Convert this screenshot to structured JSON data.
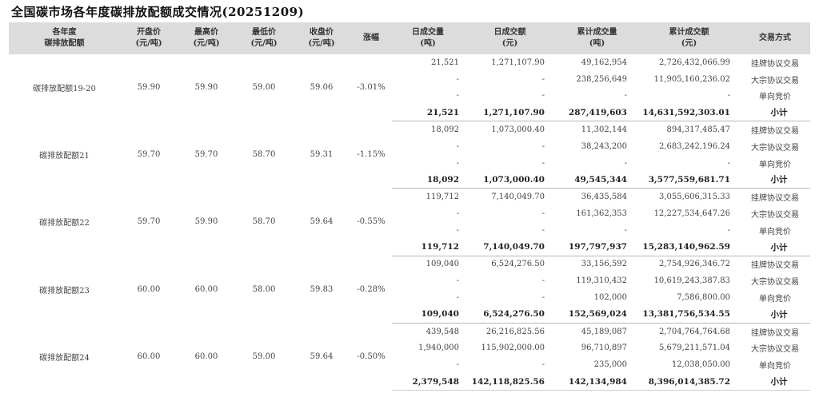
{
  "title": "全国碳市场各年度碳排放配额成交情况(20251209)",
  "headers": [
    [
      "各年度",
      "碳排放配额"
    ],
    [
      "开盘价",
      "(元/吨)"
    ],
    [
      "最高价",
      "(元/吨)"
    ],
    [
      "最低价",
      "(元/吨)"
    ],
    [
      "收盘价",
      "(元/吨)"
    ],
    [
      "涨幅"
    ],
    [
      "日成交量",
      "(吨)"
    ],
    [
      "日成交额",
      "(元)"
    ],
    [
      "累计成交量",
      "(吨)"
    ],
    [
      "累计成交额",
      "(元)"
    ],
    [
      "交易方式"
    ]
  ],
  "groups": [
    {
      "name": "碳排放配额19-20",
      "open": "59.90",
      "high": "59.90",
      "low": "59.00",
      "close": "59.06",
      "change": "-3.01%",
      "rows": [
        {
          "dvol": "21,521",
          "damt": "1,271,107.90",
          "cvol": "49,162,954",
          "camt": "2,726,432,066.99",
          "mode": "挂牌协议交易"
        },
        {
          "dvol": "-",
          "damt": "-",
          "cvol": "238,256,649",
          "camt": "11,905,160,236.02",
          "mode": "大宗协议交易"
        },
        {
          "dvol": "-",
          "damt": "-",
          "cvol": "-",
          "camt": "-",
          "mode": "单向竞价"
        },
        {
          "dvol": "21,521",
          "damt": "1,271,107.90",
          "cvol": "287,419,603",
          "camt": "14,631,592,303.01",
          "mode": "小计"
        }
      ]
    },
    {
      "name": "碳排放配额21",
      "open": "59.70",
      "high": "59.70",
      "low": "58.70",
      "close": "59.31",
      "change": "-1.15%",
      "rows": [
        {
          "dvol": "18,092",
          "damt": "1,073,000.40",
          "cvol": "11,302,144",
          "camt": "894,317,485.47",
          "mode": "挂牌协议交易"
        },
        {
          "dvol": "-",
          "damt": "-",
          "cvol": "38,243,200",
          "camt": "2,683,242,196.24",
          "mode": "大宗协议交易"
        },
        {
          "dvol": "-",
          "damt": "-",
          "cvol": "-",
          "camt": "-",
          "mode": "单向竞价"
        },
        {
          "dvol": "18,092",
          "damt": "1,073,000.40",
          "cvol": "49,545,344",
          "camt": "3,577,559,681.71",
          "mode": "小计"
        }
      ]
    },
    {
      "name": "碳排放配额22",
      "open": "59.70",
      "high": "59.90",
      "low": "58.70",
      "close": "59.64",
      "change": "-0.55%",
      "rows": [
        {
          "dvol": "119,712",
          "damt": "7,140,049.70",
          "cvol": "36,435,584",
          "camt": "3,055,606,315.33",
          "mode": "挂牌协议交易"
        },
        {
          "dvol": "-",
          "damt": "-",
          "cvol": "161,362,353",
          "camt": "12,227,534,647.26",
          "mode": "大宗协议交易"
        },
        {
          "dvol": "-",
          "damt": "-",
          "cvol": "-",
          "camt": "-",
          "mode": "单向竞价"
        },
        {
          "dvol": "119,712",
          "damt": "7,140,049.70",
          "cvol": "197,797,937",
          "camt": "15,283,140,962.59",
          "mode": "小计"
        }
      ]
    },
    {
      "name": "碳排放配额23",
      "open": "60.00",
      "high": "60.00",
      "low": "58.00",
      "close": "59.83",
      "change": "-0.28%",
      "rows": [
        {
          "dvol": "109,040",
          "damt": "6,524,276.50",
          "cvol": "33,156,592",
          "camt": "2,754,926,346.72",
          "mode": "挂牌协议交易"
        },
        {
          "dvol": "-",
          "damt": "-",
          "cvol": "119,310,432",
          "camt": "10,619,243,387.83",
          "mode": "大宗协议交易"
        },
        {
          "dvol": "-",
          "damt": "-",
          "cvol": "102,000",
          "camt": "7,586,800.00",
          "mode": "单向竞价"
        },
        {
          "dvol": "109,040",
          "damt": "6,524,276.50",
          "cvol": "152,569,024",
          "camt": "13,381,756,534.55",
          "mode": "小计"
        }
      ]
    },
    {
      "name": "碳排放配额24",
      "open": "60.00",
      "high": "60.00",
      "low": "59.00",
      "close": "59.64",
      "change": "-0.50%",
      "rows": [
        {
          "dvol": "439,548",
          "damt": "26,216,825.56",
          "cvol": "45,189,087",
          "camt": "2,704,764,764.68",
          "mode": "挂牌协议交易"
        },
        {
          "dvol": "1,940,000",
          "damt": "115,902,000.00",
          "cvol": "96,710,897",
          "camt": "5,679,211,571.04",
          "mode": "大宗协议交易"
        },
        {
          "dvol": "-",
          "damt": "-",
          "cvol": "235,000",
          "camt": "12,038,050.00",
          "mode": "单向竞价"
        },
        {
          "dvol": "2,379,548",
          "damt": "142,118,825.56",
          "cvol": "142,134,984",
          "camt": "8,396,014,385.72",
          "mode": "小计"
        }
      ]
    }
  ]
}
